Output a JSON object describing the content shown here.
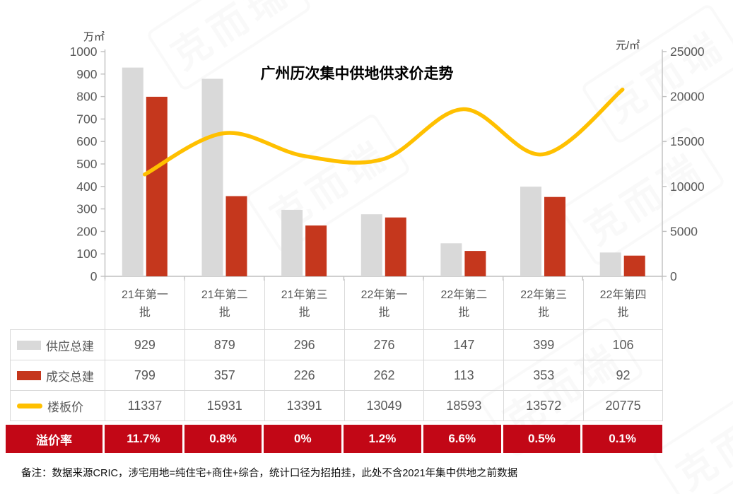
{
  "chart_data": {
    "type": "combo",
    "title": "广州历次集中供地供求价走势",
    "categories": [
      "21年第一批",
      "21年第二批",
      "21年第三批",
      "22年第一批",
      "22年第二批",
      "22年第三批",
      "22年第四批"
    ],
    "series": [
      {
        "name": "供应总建",
        "type": "bar",
        "axis": "left",
        "color": "#D9D9D9",
        "values": [
          929,
          879,
          296,
          276,
          147,
          399,
          106
        ]
      },
      {
        "name": "成交总建",
        "type": "bar",
        "axis": "left",
        "color": "#C5371D",
        "values": [
          799,
          357,
          226,
          262,
          113,
          353,
          92
        ]
      },
      {
        "name": "楼板价",
        "type": "line",
        "axis": "right",
        "color": "#FFC000",
        "values": [
          11337,
          15931,
          13391,
          13049,
          18593,
          13572,
          20775
        ]
      }
    ],
    "left_axis": {
      "unit": "万㎡",
      "min": 0,
      "max": 1000,
      "step": 100,
      "ticks": [
        0,
        100,
        200,
        300,
        400,
        500,
        600,
        700,
        800,
        900,
        1000
      ]
    },
    "right_axis": {
      "unit": "元/㎡",
      "min": 0,
      "max": 25000,
      "step": 5000,
      "ticks": [
        0,
        5000,
        10000,
        15000,
        20000,
        25000
      ]
    },
    "premium": {
      "label": "溢价率",
      "color": "#C20716",
      "values": [
        "11.7%",
        "0.8%",
        "0%",
        "1.2%",
        "6.6%",
        "0.5%",
        "0.1%"
      ]
    },
    "grid": false,
    "legend_position": "table-left"
  },
  "colors": {
    "axis_line": "#BFBFBF",
    "table_border": "#D9D9D9",
    "tick_text": "#595959",
    "banner_red": "#C20716"
  },
  "footnote": "备注：数据来源CRIC，涉宅用地=纯住宅+商住+综合，统计口径为招拍挂，此处不含2021年集中供地之前数据",
  "watermark": {
    "text": "克而瑞"
  }
}
